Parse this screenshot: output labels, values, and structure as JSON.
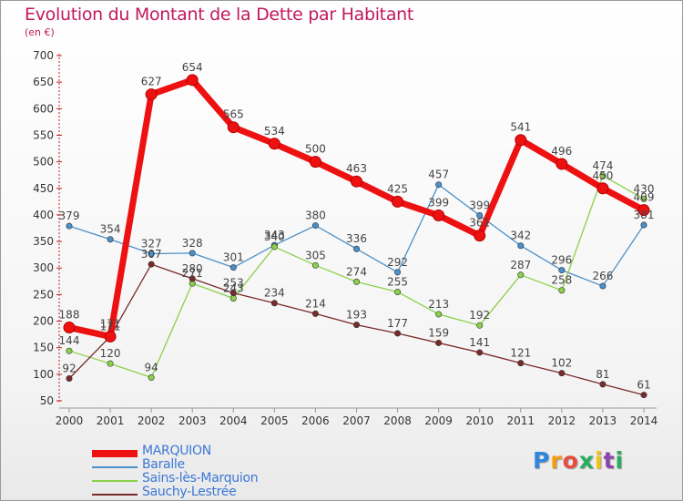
{
  "header": {
    "title": "Evolution du Montant de la Dette par Habitant",
    "subtitle": "(en €)"
  },
  "logo": {
    "text": "Proxiti",
    "colors": [
      "#2e86de",
      "#f39c12",
      "#e74c3c",
      "#27ae60",
      "#f1c40f",
      "#8e44ad",
      "#27ae60"
    ]
  },
  "chart_data": {
    "type": "line",
    "title": "Evolution du Montant de la Dette par Habitant",
    "subtitle": "(en €)",
    "xlabel": "",
    "ylabel": "",
    "ylim": [
      50,
      700
    ],
    "yticks": [
      50,
      100,
      150,
      200,
      250,
      300,
      350,
      400,
      450,
      500,
      550,
      600,
      650,
      700
    ],
    "grid": false,
    "legend_position": "bottom-left",
    "categories": [
      "2000",
      "2001",
      "2002",
      "2003",
      "2004",
      "2005",
      "2006",
      "2007",
      "2008",
      "2009",
      "2010",
      "2011",
      "2012",
      "2013",
      "2014"
    ],
    "series": [
      {
        "name": "Baralle",
        "color": "#4a90c8",
        "width": 1.3,
        "values": [
          379,
          354,
          327,
          328,
          301,
          343,
          380,
          336,
          292,
          457,
          399,
          342,
          296,
          266,
          381
        ]
      },
      {
        "name": "Sains-lès-Marquion",
        "color": "#8ad04a",
        "width": 1.3,
        "values": [
          144,
          120,
          94,
          271,
          243,
          340,
          305,
          274,
          255,
          213,
          192,
          287,
          258,
          474,
          430
        ]
      },
      {
        "name": "Sauchy-Lestrée",
        "color": "#7a2a2a",
        "width": 1.3,
        "values": [
          92,
          171,
          307,
          280,
          253,
          234,
          214,
          193,
          177,
          159,
          141,
          121,
          102,
          81,
          61
        ]
      },
      {
        "name": "MARQUION",
        "color": "#ee1111",
        "width": 7,
        "values": [
          188,
          171,
          627,
          654,
          565,
          534,
          500,
          463,
          425,
          399,
          361,
          541,
          496,
          450,
          409
        ]
      }
    ],
    "legend_order": [
      "MARQUION",
      "Baralle",
      "Sains-lès-Marquion",
      "Sauchy-Lestrée"
    ],
    "labels": [
      {
        "series": "MARQUION",
        "values": [
          "188",
          "171",
          "627",
          "654",
          "565",
          "534",
          "500",
          "463",
          "425",
          "399",
          "361",
          "541",
          "496",
          "450",
          "409"
        ]
      },
      {
        "series": "Baralle",
        "values": [
          "379",
          "354",
          "327",
          "328",
          "301",
          "343",
          "380",
          "336",
          "292",
          "457",
          "399",
          "342",
          "296",
          "266",
          "381"
        ]
      },
      {
        "series": "Sains-lès-Marquion",
        "values": [
          "144",
          "120",
          "94",
          "271",
          "243",
          "340",
          "305",
          "274",
          "255",
          "213",
          "192",
          "287",
          "258",
          "474",
          "430"
        ]
      },
      {
        "series": "Sauchy-Lestrée",
        "values": [
          "92",
          "171",
          "307",
          "280",
          "253",
          "234",
          "214",
          "193",
          "177",
          "159",
          "141",
          "121",
          "102",
          "81",
          "61"
        ]
      }
    ]
  }
}
